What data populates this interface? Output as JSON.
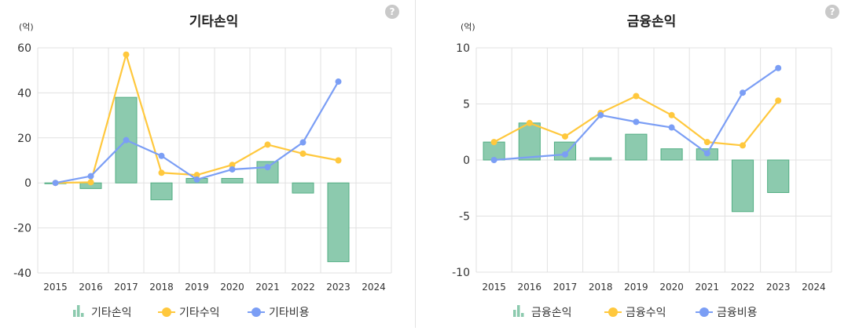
{
  "colors": {
    "bar_fill": "#8ccaae",
    "bar_stroke": "#52ae83",
    "income": "#ffc83d",
    "expense": "#7b9ef5",
    "grid": "#e1e1e1",
    "help": "#c9c9c9"
  },
  "help_icon_symbol": "?",
  "chart_data": [
    {
      "type": "bar",
      "title": "기타손익",
      "unit_label": "(억)",
      "categories": [
        "2015",
        "2016",
        "2017",
        "2018",
        "2019",
        "2020",
        "2021",
        "2022",
        "2023",
        "2024"
      ],
      "ylim": [
        -40,
        60
      ],
      "yticks": [
        60,
        40,
        20,
        0,
        -20,
        -40
      ],
      "grid": true,
      "legend_position": "bottom",
      "series": [
        {
          "name": "기타손익",
          "kind": "bar",
          "values": [
            0,
            -2.5,
            38,
            -7.5,
            2,
            2,
            9.5,
            -4.5,
            -35,
            null
          ]
        },
        {
          "name": "기타수익",
          "kind": "line",
          "values": [
            0,
            0.3,
            57,
            4.5,
            3.5,
            8,
            17,
            13,
            10,
            null
          ]
        },
        {
          "name": "기타비용",
          "kind": "line",
          "values": [
            0,
            3,
            19,
            12,
            1.5,
            6,
            7,
            18,
            45,
            null
          ]
        }
      ]
    },
    {
      "type": "bar",
      "title": "금융손익",
      "unit_label": "(억)",
      "categories": [
        "2015",
        "2016",
        "2017",
        "2018",
        "2019",
        "2020",
        "2021",
        "2022",
        "2023",
        "2024"
      ],
      "ylim": [
        -10,
        10
      ],
      "yticks": [
        10,
        5,
        0,
        -5,
        -10
      ],
      "grid": true,
      "legend_position": "bottom",
      "series": [
        {
          "name": "금융손익",
          "kind": "bar",
          "values": [
            1.6,
            3.3,
            1.6,
            0.2,
            2.3,
            1.0,
            1.0,
            -4.6,
            -2.9,
            null
          ]
        },
        {
          "name": "금융수익",
          "kind": "line",
          "values": [
            1.6,
            3.3,
            2.1,
            4.2,
            5.7,
            4.0,
            1.6,
            1.3,
            5.3,
            null
          ]
        },
        {
          "name": "금융비용",
          "kind": "line",
          "values": [
            0,
            null,
            0.5,
            4.0,
            3.4,
            2.9,
            0.6,
            6.0,
            8.2,
            null
          ]
        }
      ]
    }
  ]
}
